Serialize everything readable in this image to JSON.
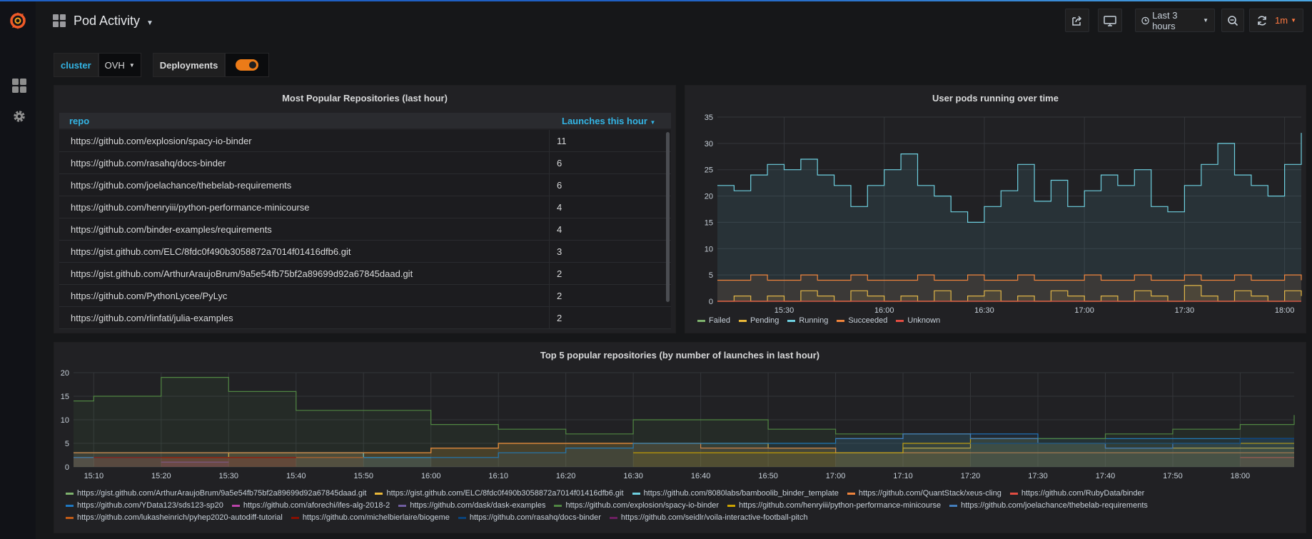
{
  "dashboard": {
    "title": "Pod Activity"
  },
  "header": {
    "time_range": "Last 3 hours",
    "refresh": "1m"
  },
  "variables": [
    {
      "label": "cluster",
      "value": "OVH"
    },
    {
      "label": "Deployments",
      "toggle": true
    }
  ],
  "colors": {
    "accent": "#eb7b18",
    "link": "#33b5e5"
  },
  "icons": {
    "logo": "grafana-logo-icon",
    "sidebar": [
      "dashboards-icon",
      "gear-icon"
    ],
    "header": [
      "share-icon",
      "tv-icon",
      "clock-icon",
      "zoom-out-icon",
      "refresh-icon"
    ]
  },
  "repo_table": {
    "title": "Most Popular Repositories (last hour)",
    "columns": [
      "repo",
      "Launches this hour"
    ],
    "sort": "desc",
    "rows": [
      {
        "repo": "https://github.com/explosion/spacy-io-binder",
        "launches": "11"
      },
      {
        "repo": "https://github.com/rasahq/docs-binder",
        "launches": "6"
      },
      {
        "repo": "https://github.com/joelachance/thebelab-requirements",
        "launches": "6"
      },
      {
        "repo": "https://github.com/henryiii/python-performance-minicourse",
        "launches": "4"
      },
      {
        "repo": "https://github.com/binder-examples/requirements",
        "launches": "4"
      },
      {
        "repo": "https://gist.github.com/ELC/8fdc0f490b3058872a7014f01416dfb6.git",
        "launches": "3"
      },
      {
        "repo": "https://gist.github.com/ArthurAraujoBrum/9a5e54fb75bf2a89699d92a67845daad.git",
        "launches": "2"
      },
      {
        "repo": "https://github.com/PythonLycee/PyLyc",
        "launches": "2"
      },
      {
        "repo": "https://github.com/rlinfati/julia-examples",
        "launches": "2"
      }
    ]
  },
  "chart_data": [
    {
      "type": "area",
      "title": "User pods running over time",
      "xlabel": "",
      "ylabel": "",
      "ylim": [
        0,
        35
      ],
      "yticks": [
        "0",
        "5",
        "10",
        "15",
        "20",
        "25",
        "30",
        "35"
      ],
      "xticks": [
        "15:30",
        "16:00",
        "16:30",
        "17:00",
        "17:30",
        "18:00"
      ],
      "grid": true,
      "legend": "bottom",
      "x": [
        "15:10",
        "15:15",
        "15:20",
        "15:25",
        "15:30",
        "15:35",
        "15:40",
        "15:45",
        "15:50",
        "15:55",
        "16:00",
        "16:05",
        "16:10",
        "16:15",
        "16:20",
        "16:25",
        "16:30",
        "16:35",
        "16:40",
        "16:45",
        "16:50",
        "16:55",
        "17:00",
        "17:05",
        "17:10",
        "17:15",
        "17:20",
        "17:25",
        "17:30",
        "17:35",
        "17:40",
        "17:45",
        "17:50",
        "17:55",
        "18:00",
        "18:05"
      ],
      "series": [
        {
          "name": "Failed",
          "color": "#7eb26d",
          "values": [
            0,
            0,
            0,
            0,
            0,
            0,
            0,
            0,
            0,
            0,
            0,
            0,
            0,
            0,
            0,
            0,
            0,
            0,
            0,
            0,
            0,
            0,
            0,
            0,
            0,
            0,
            0,
            0,
            0,
            0,
            0,
            0,
            0,
            0,
            0,
            0
          ]
        },
        {
          "name": "Pending",
          "color": "#eab839",
          "values": [
            0,
            1,
            0,
            1,
            0,
            2,
            1,
            0,
            2,
            1,
            0,
            1,
            0,
            2,
            0,
            1,
            2,
            0,
            1,
            0,
            2,
            1,
            0,
            1,
            0,
            2,
            1,
            0,
            3,
            1,
            0,
            2,
            1,
            0,
            2,
            1
          ]
        },
        {
          "name": "Running",
          "color": "#6ed0e0",
          "values": [
            22,
            21,
            24,
            26,
            25,
            27,
            24,
            22,
            18,
            22,
            25,
            28,
            22,
            20,
            17,
            15,
            18,
            21,
            26,
            19,
            23,
            18,
            21,
            24,
            22,
            25,
            18,
            17,
            22,
            26,
            30,
            24,
            22,
            20,
            26,
            32
          ]
        },
        {
          "name": "Succeeded",
          "color": "#ef843c",
          "values": [
            4,
            4,
            5,
            4,
            4,
            5,
            4,
            4,
            5,
            4,
            4,
            4,
            5,
            4,
            4,
            5,
            4,
            4,
            5,
            4,
            4,
            4,
            5,
            4,
            4,
            5,
            4,
            4,
            5,
            4,
            4,
            5,
            4,
            4,
            5,
            4
          ]
        },
        {
          "name": "Unknown",
          "color": "#e24d42",
          "values": [
            0,
            0,
            0,
            0,
            0,
            0,
            0,
            0,
            0,
            0,
            0,
            0,
            0,
            0,
            0,
            0,
            0,
            0,
            0,
            0,
            0,
            0,
            0,
            0,
            0,
            0,
            0,
            0,
            0,
            0,
            0,
            0,
            0,
            0,
            0,
            0
          ]
        }
      ]
    },
    {
      "type": "line",
      "title": "Top 5 popular repositories (by number of launches in last hour)",
      "xlabel": "",
      "ylabel": "",
      "ylim": [
        0,
        20
      ],
      "yticks": [
        "0",
        "5",
        "10",
        "15",
        "20"
      ],
      "xticks": [
        "15:10",
        "15:20",
        "15:30",
        "15:40",
        "15:50",
        "16:00",
        "16:10",
        "16:20",
        "16:30",
        "16:40",
        "16:50",
        "17:00",
        "17:10",
        "17:20",
        "17:30",
        "17:40",
        "17:50",
        "18:00"
      ],
      "grid": true,
      "legend": "bottom",
      "x": [
        "15:07",
        "15:10",
        "15:20",
        "15:30",
        "15:40",
        "15:50",
        "16:00",
        "16:10",
        "16:20",
        "16:30",
        "16:40",
        "16:50",
        "17:00",
        "17:10",
        "17:20",
        "17:30",
        "17:40",
        "17:50",
        "18:00",
        "18:08"
      ],
      "series": [
        {
          "name": "https://gist.github.com/ArthurAraujoBrum/9a5e54fb75bf2a89699d92a67845daad.git",
          "color": "#7eb26d",
          "values": [
            null,
            null,
            null,
            null,
            null,
            null,
            null,
            null,
            null,
            null,
            null,
            null,
            null,
            null,
            null,
            null,
            null,
            null,
            null,
            null
          ]
        },
        {
          "name": "https://gist.github.com/ELC/8fdc0f490b3058872a7014f01416dfb6.git",
          "color": "#eab839",
          "values": [
            2,
            2,
            2,
            3,
            3,
            3,
            4,
            5,
            5,
            5,
            5,
            4,
            3,
            4,
            5,
            5,
            4,
            4,
            4,
            4
          ]
        },
        {
          "name": "https://github.com/8080labs/bamboolib_binder_template",
          "color": "#6ed0e0",
          "values": [
            3,
            3,
            3,
            3,
            3,
            2,
            2,
            null,
            null,
            null,
            null,
            null,
            null,
            null,
            null,
            null,
            null,
            null,
            null,
            null
          ]
        },
        {
          "name": "https://github.com/QuantStack/xeus-cling",
          "color": "#ef843c",
          "values": [
            3,
            3,
            3,
            3,
            3,
            3,
            4,
            5,
            5,
            5,
            4,
            4,
            3,
            3,
            3,
            3,
            3,
            3,
            3,
            3
          ]
        },
        {
          "name": "https://github.com/RubyData/binder",
          "color": "#e24d42",
          "values": [
            2,
            2,
            2,
            2,
            2,
            null,
            null,
            null,
            null,
            null,
            null,
            null,
            null,
            null,
            null,
            null,
            null,
            null,
            2,
            2
          ]
        },
        {
          "name": "https://github.com/YData123/sds123-sp20",
          "color": "#1f78c1",
          "values": [
            2,
            2,
            2,
            2,
            2,
            2,
            2,
            3,
            4,
            5,
            5,
            5,
            6,
            7,
            7,
            6,
            6,
            6,
            6,
            6
          ]
        },
        {
          "name": "https://github.com/aforechi/ifes-alg-2018-2",
          "color": "#ba43a9",
          "values": [
            null,
            null,
            1,
            1,
            null,
            null,
            null,
            null,
            null,
            null,
            null,
            null,
            null,
            null,
            null,
            null,
            null,
            null,
            null,
            null
          ]
        },
        {
          "name": "https://github.com/dask/dask-examples",
          "color": "#705da0",
          "values": [
            null,
            null,
            1,
            1,
            null,
            null,
            null,
            null,
            null,
            null,
            null,
            null,
            null,
            null,
            null,
            null,
            null,
            null,
            null,
            null
          ]
        },
        {
          "name": "https://github.com/explosion/spacy-io-binder",
          "color": "#508642",
          "values": [
            14,
            15,
            19,
            16,
            12,
            12,
            9,
            8,
            7,
            10,
            10,
            8,
            7,
            7,
            6,
            6,
            7,
            8,
            9,
            11
          ]
        },
        {
          "name": "https://github.com/henryiii/python-performance-minicourse",
          "color": "#cca300",
          "values": [
            null,
            null,
            null,
            null,
            null,
            null,
            null,
            null,
            null,
            3,
            3,
            3,
            3,
            5,
            6,
            5,
            5,
            5,
            5,
            5
          ]
        },
        {
          "name": "https://github.com/joelachance/thebelab-requirements",
          "color": "#447ebc",
          "values": [
            null,
            null,
            null,
            null,
            null,
            null,
            null,
            null,
            null,
            null,
            null,
            null,
            6,
            7,
            6,
            5,
            4,
            5,
            6,
            6
          ]
        },
        {
          "name": "https://github.com/lukasheinrich/pyhep2020-autodiff-tutorial",
          "color": "#c15c17",
          "values": [
            null,
            null,
            2,
            2,
            2,
            2,
            null,
            null,
            null,
            null,
            null,
            null,
            null,
            null,
            null,
            null,
            null,
            null,
            null,
            null
          ]
        },
        {
          "name": "https://github.com/michelbierlaire/biogeme",
          "color": "#890f02",
          "values": [
            null,
            2,
            2,
            2,
            2,
            null,
            null,
            null,
            null,
            null,
            null,
            null,
            null,
            null,
            null,
            null,
            null,
            null,
            null,
            null
          ]
        },
        {
          "name": "https://github.com/rasahq/docs-binder",
          "color": "#0a437c",
          "values": [
            null,
            null,
            null,
            null,
            null,
            null,
            null,
            null,
            null,
            null,
            null,
            null,
            null,
            null,
            5,
            5,
            5,
            5,
            6,
            6
          ]
        },
        {
          "name": "https://github.com/seidlr/voila-interactive-football-pitch",
          "color": "#6d1f62",
          "values": [
            null,
            null,
            null,
            null,
            null,
            null,
            null,
            null,
            null,
            null,
            null,
            null,
            null,
            null,
            null,
            null,
            null,
            null,
            null,
            null
          ]
        }
      ]
    }
  ]
}
